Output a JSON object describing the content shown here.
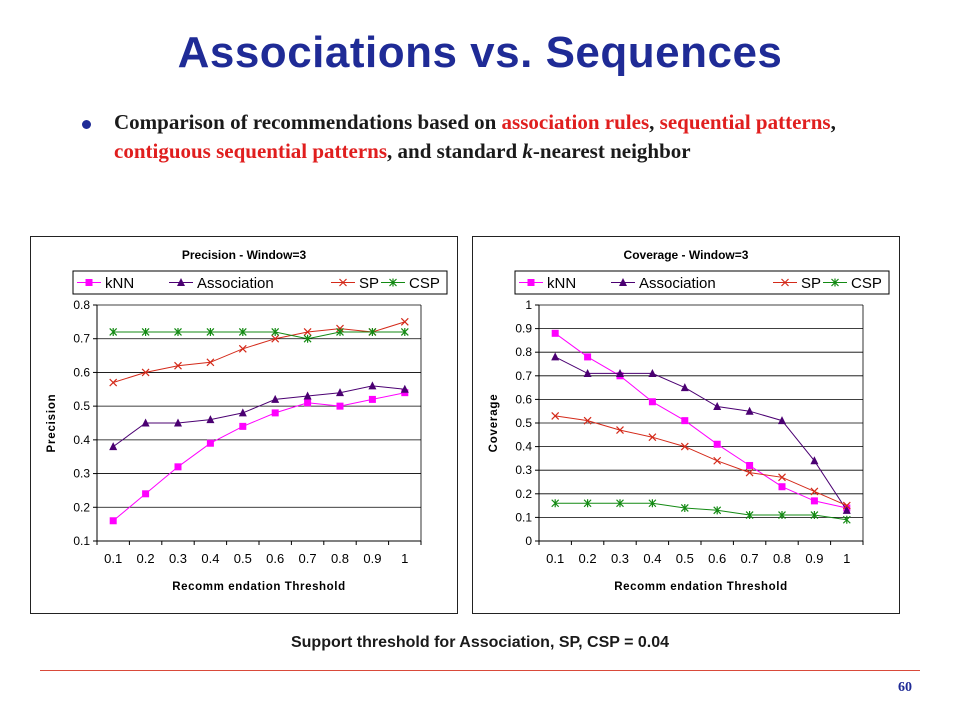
{
  "slide": {
    "title": "Associations vs. Sequences",
    "bullet": {
      "t1": "Comparison of recommendations based on ",
      "t2": "association rules",
      "t3": ", ",
      "t4": "sequential patterns",
      "t5": ", ",
      "t6": "contiguous sequential patterns",
      "t7": ", and standard ",
      "t8": "k",
      "t9": "-nearest neighbor"
    },
    "support_note": "Support threshold for Association, SP, CSP = 0.04",
    "page_number": "60"
  },
  "colors": {
    "title": "#1f2b96",
    "highlight": "#e01e1e",
    "knn": "#ff00ff",
    "association": "#4b0072",
    "sp": "#d42a1a",
    "csp": "#138a13"
  },
  "chart_data": [
    {
      "type": "line",
      "title": "Precision - Window=3",
      "xlabel": "Recomm endation Threshold",
      "ylabel": "Precision",
      "categories": [
        "0.1",
        "0.2",
        "0.3",
        "0.4",
        "0.5",
        "0.6",
        "0.7",
        "0.8",
        "0.9",
        "1"
      ],
      "ylim": [
        0.1,
        0.8
      ],
      "yticks": [
        "0.1",
        "0.2",
        "0.3",
        "0.4",
        "0.5",
        "0.6",
        "0.7",
        "0.8"
      ],
      "grid": true,
      "legend": "top",
      "series": [
        {
          "name": "kNN",
          "marker": "square",
          "color": "#ff00ff",
          "values": [
            0.16,
            0.24,
            0.32,
            0.39,
            0.44,
            0.48,
            0.51,
            0.5,
            0.52,
            0.54
          ]
        },
        {
          "name": "Association",
          "marker": "triangle",
          "color": "#4b0072",
          "values": [
            0.38,
            0.45,
            0.45,
            0.46,
            0.48,
            0.52,
            0.53,
            0.54,
            0.56,
            0.55
          ]
        },
        {
          "name": "SP",
          "marker": "x",
          "color": "#d42a1a",
          "values": [
            0.57,
            0.6,
            0.62,
            0.63,
            0.67,
            0.7,
            0.72,
            0.73,
            0.72,
            0.75
          ]
        },
        {
          "name": "CSP",
          "marker": "star",
          "color": "#138a13",
          "values": [
            0.72,
            0.72,
            0.72,
            0.72,
            0.72,
            0.72,
            0.7,
            0.72,
            0.72,
            0.72
          ]
        }
      ]
    },
    {
      "type": "line",
      "title": "Coverage - Window=3",
      "xlabel": "Recomm endation Threshold",
      "ylabel": "Coverage",
      "categories": [
        "0.1",
        "0.2",
        "0.3",
        "0.4",
        "0.5",
        "0.6",
        "0.7",
        "0.8",
        "0.9",
        "1"
      ],
      "ylim": [
        0,
        1
      ],
      "yticks": [
        "0",
        "0.1",
        "0.2",
        "0.3",
        "0.4",
        "0.5",
        "0.6",
        "0.7",
        "0.8",
        "0.9",
        "1"
      ],
      "grid": true,
      "legend": "top",
      "series": [
        {
          "name": "kNN",
          "marker": "square",
          "color": "#ff00ff",
          "values": [
            0.88,
            0.78,
            0.7,
            0.59,
            0.51,
            0.41,
            0.32,
            0.23,
            0.17,
            0.14
          ]
        },
        {
          "name": "Association",
          "marker": "triangle",
          "color": "#4b0072",
          "values": [
            0.78,
            0.71,
            0.71,
            0.71,
            0.65,
            0.57,
            0.55,
            0.51,
            0.34,
            0.13
          ]
        },
        {
          "name": "SP",
          "marker": "x",
          "color": "#d42a1a",
          "values": [
            0.53,
            0.51,
            0.47,
            0.44,
            0.4,
            0.34,
            0.29,
            0.27,
            0.21,
            0.15
          ]
        },
        {
          "name": "CSP",
          "marker": "star",
          "color": "#138a13",
          "values": [
            0.16,
            0.16,
            0.16,
            0.16,
            0.14,
            0.13,
            0.11,
            0.11,
            0.11,
            0.09
          ]
        }
      ]
    }
  ]
}
